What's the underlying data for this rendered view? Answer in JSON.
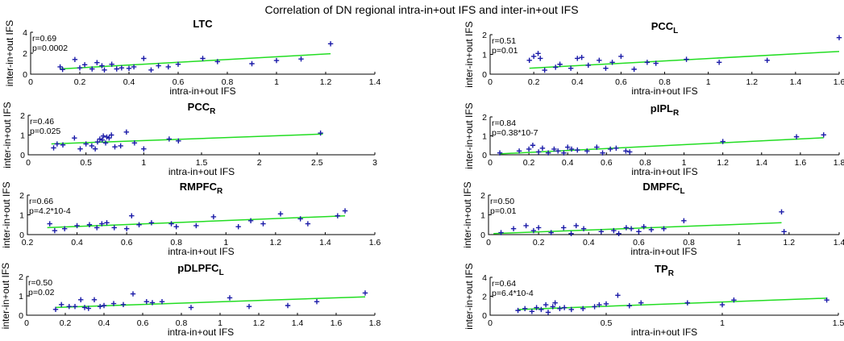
{
  "figure_title": "Correlation of DN regional intra-in+out IFS and inter-in+out IFS",
  "colors": {
    "points": "#1a1aa8",
    "fit_line": "#22dd22",
    "axes": "#000000"
  },
  "chart_data": [
    {
      "type": "scatter",
      "title": "LTC",
      "subscript": "",
      "xlabel": "intra-in+out IFS",
      "ylabel": "inter-in+out IFS",
      "annotation": [
        "r=0.69",
        "p=0.0002"
      ],
      "xlim": [
        0,
        1.4
      ],
      "ylim": [
        0,
        4
      ],
      "xticks": [
        0,
        0.2,
        0.4,
        0.6,
        0.8,
        1,
        1.2,
        1.4
      ],
      "yticks": [
        0,
        2,
        4
      ],
      "xtick_labels": [
        "0",
        "0.2",
        "0.4",
        "0.6",
        "0.8",
        "1",
        "1.2",
        "1.4"
      ],
      "ytick_labels": [
        "0",
        "2",
        "4"
      ],
      "fit": [
        [
          0.12,
          0.5
        ],
        [
          1.22,
          1.95
        ]
      ],
      "points": [
        [
          0.12,
          0.7
        ],
        [
          0.13,
          0.45
        ],
        [
          0.18,
          1.4
        ],
        [
          0.2,
          0.6
        ],
        [
          0.22,
          0.9
        ],
        [
          0.25,
          0.5
        ],
        [
          0.27,
          1.1
        ],
        [
          0.29,
          0.8
        ],
        [
          0.3,
          0.4
        ],
        [
          0.33,
          0.95
        ],
        [
          0.35,
          0.5
        ],
        [
          0.37,
          0.6
        ],
        [
          0.4,
          0.55
        ],
        [
          0.42,
          0.7
        ],
        [
          0.46,
          1.5
        ],
        [
          0.49,
          0.4
        ],
        [
          0.52,
          0.8
        ],
        [
          0.56,
          0.7
        ],
        [
          0.6,
          0.95
        ],
        [
          0.7,
          1.5
        ],
        [
          0.76,
          1.2
        ],
        [
          0.9,
          1.0
        ],
        [
          1.0,
          1.3
        ],
        [
          1.1,
          1.45
        ],
        [
          1.22,
          2.9
        ]
      ]
    },
    {
      "type": "scatter",
      "title": "PCC",
      "subscript": "L",
      "xlabel": "intra-in+out IFS",
      "ylabel": "inter-in+out IFS",
      "annotation": [
        "r=0.51",
        "p=0.01"
      ],
      "xlim": [
        0,
        1.6
      ],
      "ylim": [
        0,
        2
      ],
      "xticks": [
        0,
        0.2,
        0.4,
        0.6,
        0.8,
        1,
        1.2,
        1.4,
        1.6
      ],
      "yticks": [
        0,
        1,
        2
      ],
      "xtick_labels": [
        "0",
        "0.2",
        "0.4",
        "0.6",
        "0.8",
        "1",
        "1.2",
        "1.4",
        "1.6"
      ],
      "ytick_labels": [
        "0",
        "1",
        "2"
      ],
      "fit": [
        [
          0.18,
          0.3
        ],
        [
          1.6,
          1.15
        ]
      ],
      "points": [
        [
          0.18,
          0.7
        ],
        [
          0.2,
          0.9
        ],
        [
          0.22,
          1.05
        ],
        [
          0.23,
          0.8
        ],
        [
          0.25,
          0.2
        ],
        [
          0.3,
          0.35
        ],
        [
          0.32,
          0.5
        ],
        [
          0.37,
          0.3
        ],
        [
          0.4,
          0.8
        ],
        [
          0.42,
          0.85
        ],
        [
          0.45,
          0.45
        ],
        [
          0.5,
          0.7
        ],
        [
          0.53,
          0.3
        ],
        [
          0.56,
          0.6
        ],
        [
          0.6,
          0.9
        ],
        [
          0.66,
          0.25
        ],
        [
          0.72,
          0.6
        ],
        [
          0.76,
          0.55
        ],
        [
          0.9,
          0.75
        ],
        [
          1.05,
          0.6
        ],
        [
          1.27,
          0.7
        ],
        [
          1.6,
          1.85
        ]
      ]
    },
    {
      "type": "scatter",
      "title": "PCC",
      "subscript": "R",
      "xlabel": "intra-in+out IFS",
      "ylabel": "inter-in+out IFS",
      "annotation": [
        "r=0.46",
        "p=0.025"
      ],
      "xlim": [
        0,
        3
      ],
      "ylim": [
        0,
        2
      ],
      "xticks": [
        0,
        0.5,
        1,
        1.5,
        2,
        2.5,
        3
      ],
      "yticks": [
        0,
        1,
        2
      ],
      "xtick_labels": [
        "0",
        "0.5",
        "1",
        "1.5",
        "2",
        "2.5",
        "3"
      ],
      "ytick_labels": [
        "0",
        "1",
        "2"
      ],
      "fit": [
        [
          0.2,
          0.55
        ],
        [
          2.55,
          1.05
        ]
      ],
      "points": [
        [
          0.22,
          0.35
        ],
        [
          0.25,
          0.55
        ],
        [
          0.3,
          0.5
        ],
        [
          0.4,
          0.85
        ],
        [
          0.45,
          0.3
        ],
        [
          0.5,
          0.55
        ],
        [
          0.55,
          0.45
        ],
        [
          0.58,
          0.3
        ],
        [
          0.6,
          0.65
        ],
        [
          0.62,
          0.8
        ],
        [
          0.64,
          0.75
        ],
        [
          0.65,
          0.95
        ],
        [
          0.67,
          0.6
        ],
        [
          0.68,
          0.9
        ],
        [
          0.7,
          0.85
        ],
        [
          0.72,
          1.0
        ],
        [
          0.75,
          0.4
        ],
        [
          0.8,
          0.45
        ],
        [
          0.85,
          1.15
        ],
        [
          0.92,
          0.6
        ],
        [
          1.0,
          0.3
        ],
        [
          1.22,
          0.8
        ],
        [
          1.3,
          0.7
        ],
        [
          2.53,
          1.1
        ]
      ]
    },
    {
      "type": "scatter",
      "title": "pIPL",
      "subscript": "R",
      "xlabel": "intra-in+out IFS",
      "ylabel": "inter-in+out IFS",
      "annotation": [
        "r=0.84",
        "p=0.38*10-7"
      ],
      "xlim": [
        0,
        1.8
      ],
      "ylim": [
        0,
        2
      ],
      "xticks": [
        0,
        0.2,
        0.4,
        0.6,
        0.8,
        1,
        1.2,
        1.4,
        1.6,
        1.8
      ],
      "yticks": [
        0,
        1,
        2
      ],
      "xtick_labels": [
        "0",
        "0.2",
        "0.4",
        "0.6",
        "0.8",
        "1",
        "1.2",
        "1.4",
        "1.6",
        "1.8"
      ],
      "ytick_labels": [
        "0",
        "1",
        "2"
      ],
      "fit": [
        [
          0.05,
          0.05
        ],
        [
          1.72,
          0.9
        ]
      ],
      "points": [
        [
          0.05,
          0.1
        ],
        [
          0.15,
          0.2
        ],
        [
          0.2,
          0.3
        ],
        [
          0.22,
          0.5
        ],
        [
          0.25,
          0.15
        ],
        [
          0.27,
          0.35
        ],
        [
          0.3,
          0.1
        ],
        [
          0.33,
          0.3
        ],
        [
          0.35,
          0.2
        ],
        [
          0.38,
          0.1
        ],
        [
          0.4,
          0.4
        ],
        [
          0.42,
          0.3
        ],
        [
          0.45,
          0.25
        ],
        [
          0.5,
          0.2
        ],
        [
          0.55,
          0.4
        ],
        [
          0.58,
          0.1
        ],
        [
          0.62,
          0.3
        ],
        [
          0.65,
          0.35
        ],
        [
          0.7,
          0.2
        ],
        [
          0.72,
          0.15
        ],
        [
          1.2,
          0.7
        ],
        [
          1.58,
          0.95
        ],
        [
          1.72,
          1.05
        ]
      ]
    },
    {
      "type": "scatter",
      "title": "RMPFC",
      "subscript": "R",
      "xlabel": "intra-in+out IFS",
      "ylabel": "inter-in+out IFS",
      "annotation": [
        "r=0.66",
        "p=4.2*10-4"
      ],
      "xlim": [
        0.2,
        1.6
      ],
      "ylim": [
        0,
        2
      ],
      "xticks": [
        0.2,
        0.4,
        0.6,
        0.8,
        1,
        1.2,
        1.4,
        1.6
      ],
      "yticks": [
        0,
        1,
        2
      ],
      "xtick_labels": [
        "0.2",
        "0.4",
        "0.6",
        "0.8",
        "1",
        "1.2",
        "1.4",
        "1.6"
      ],
      "ytick_labels": [
        "0",
        "1",
        "2"
      ],
      "fit": [
        [
          0.28,
          0.35
        ],
        [
          1.48,
          0.95
        ]
      ],
      "points": [
        [
          0.29,
          0.55
        ],
        [
          0.31,
          0.2
        ],
        [
          0.35,
          0.3
        ],
        [
          0.4,
          0.45
        ],
        [
          0.45,
          0.5
        ],
        [
          0.48,
          0.35
        ],
        [
          0.5,
          0.55
        ],
        [
          0.52,
          0.6
        ],
        [
          0.55,
          0.35
        ],
        [
          0.6,
          0.3
        ],
        [
          0.62,
          0.95
        ],
        [
          0.65,
          0.5
        ],
        [
          0.7,
          0.6
        ],
        [
          0.78,
          0.55
        ],
        [
          0.8,
          0.4
        ],
        [
          0.88,
          0.45
        ],
        [
          0.95,
          0.9
        ],
        [
          1.05,
          0.4
        ],
        [
          1.1,
          0.7
        ],
        [
          1.15,
          0.55
        ],
        [
          1.22,
          1.05
        ],
        [
          1.3,
          0.8
        ],
        [
          1.33,
          0.55
        ],
        [
          1.45,
          0.95
        ],
        [
          1.48,
          1.2
        ]
      ]
    },
    {
      "type": "scatter",
      "title": "DMPFC",
      "subscript": "L",
      "xlabel": "intra-in+out IFS",
      "ylabel": "inter-in+out IFS",
      "annotation": [
        "r=0.50",
        "p=0.01"
      ],
      "xlim": [
        0,
        1.4
      ],
      "ylim": [
        0,
        2
      ],
      "xticks": [
        0,
        0.2,
        0.4,
        0.6,
        0.8,
        1,
        1.2,
        1.4
      ],
      "yticks": [
        0,
        1,
        2
      ],
      "xtick_labels": [
        "0",
        "0.2",
        "0.4",
        "0.6",
        "0.8",
        "1",
        "1.2",
        "1.4"
      ],
      "ytick_labels": [
        "0",
        "1",
        "2"
      ],
      "fit": [
        [
          0.02,
          0.05
        ],
        [
          1.17,
          0.6
        ]
      ],
      "points": [
        [
          0.05,
          0.1
        ],
        [
          0.1,
          0.3
        ],
        [
          0.15,
          0.45
        ],
        [
          0.18,
          0.2
        ],
        [
          0.2,
          0.35
        ],
        [
          0.25,
          0.1
        ],
        [
          0.3,
          0.35
        ],
        [
          0.33,
          0.05
        ],
        [
          0.35,
          0.45
        ],
        [
          0.38,
          0.3
        ],
        [
          0.45,
          0.15
        ],
        [
          0.5,
          0.2
        ],
        [
          0.52,
          0.05
        ],
        [
          0.55,
          0.35
        ],
        [
          0.57,
          0.3
        ],
        [
          0.6,
          0.15
        ],
        [
          0.62,
          0.4
        ],
        [
          0.65,
          0.25
        ],
        [
          0.7,
          0.3
        ],
        [
          0.78,
          0.7
        ],
        [
          1.17,
          1.15
        ],
        [
          1.18,
          0.15
        ]
      ]
    },
    {
      "type": "scatter",
      "title": "pDLPFC",
      "subscript": "L",
      "xlabel": "intra-in+out IFS",
      "ylabel": "inter-in+out IFS",
      "annotation": [
        "r=0.50",
        "p=0.02"
      ],
      "xlim": [
        0,
        1.8
      ],
      "ylim": [
        0,
        2
      ],
      "xticks": [
        0,
        0.2,
        0.4,
        0.6,
        0.8,
        1,
        1.2,
        1.4,
        1.6,
        1.8
      ],
      "yticks": [
        0,
        1,
        2
      ],
      "xtick_labels": [
        "0",
        "0.2",
        "0.4",
        "0.6",
        "0.8",
        "1",
        "1.2",
        "1.4",
        "1.6",
        "1.8"
      ],
      "ytick_labels": [
        "0",
        "1",
        "2"
      ],
      "fit": [
        [
          0.15,
          0.4
        ],
        [
          1.75,
          0.95
        ]
      ],
      "points": [
        [
          0.15,
          0.3
        ],
        [
          0.18,
          0.55
        ],
        [
          0.22,
          0.45
        ],
        [
          0.25,
          0.45
        ],
        [
          0.28,
          0.8
        ],
        [
          0.3,
          0.4
        ],
        [
          0.32,
          0.35
        ],
        [
          0.35,
          0.8
        ],
        [
          0.38,
          0.45
        ],
        [
          0.4,
          0.5
        ],
        [
          0.45,
          0.6
        ],
        [
          0.5,
          0.55
        ],
        [
          0.55,
          1.1
        ],
        [
          0.62,
          0.7
        ],
        [
          0.65,
          0.65
        ],
        [
          0.7,
          0.7
        ],
        [
          0.85,
          0.4
        ],
        [
          1.05,
          0.9
        ],
        [
          1.15,
          0.45
        ],
        [
          1.35,
          0.5
        ],
        [
          1.5,
          0.7
        ],
        [
          1.75,
          1.15
        ]
      ]
    },
    {
      "type": "scatter",
      "title": "TP",
      "subscript": "R",
      "xlabel": "intra-in+out IFS",
      "ylabel": "inter-in+out IFS",
      "annotation": [
        "r=0.64",
        "p=6.4*10-4"
      ],
      "xlim": [
        0,
        1.5
      ],
      "ylim": [
        0,
        4
      ],
      "xticks": [
        0,
        0.5,
        1,
        1.5
      ],
      "yticks": [
        0,
        2,
        4
      ],
      "xtick_labels": [
        "0",
        "0.5",
        "1",
        "1.5"
      ],
      "ytick_labels": [
        "0",
        "2",
        "4"
      ],
      "fit": [
        [
          0.12,
          0.6
        ],
        [
          1.45,
          1.8
        ]
      ],
      "points": [
        [
          0.12,
          0.5
        ],
        [
          0.15,
          0.7
        ],
        [
          0.18,
          0.4
        ],
        [
          0.2,
          0.8
        ],
        [
          0.22,
          0.6
        ],
        [
          0.24,
          1.1
        ],
        [
          0.25,
          0.3
        ],
        [
          0.27,
          0.9
        ],
        [
          0.28,
          1.3
        ],
        [
          0.3,
          0.7
        ],
        [
          0.32,
          0.8
        ],
        [
          0.35,
          0.6
        ],
        [
          0.4,
          0.7
        ],
        [
          0.45,
          0.9
        ],
        [
          0.47,
          1.1
        ],
        [
          0.5,
          1.2
        ],
        [
          0.55,
          2.1
        ],
        [
          0.6,
          1.0
        ],
        [
          0.65,
          1.3
        ],
        [
          0.85,
          1.3
        ],
        [
          1.0,
          1.1
        ],
        [
          1.05,
          1.6
        ],
        [
          1.45,
          1.6
        ]
      ]
    }
  ]
}
